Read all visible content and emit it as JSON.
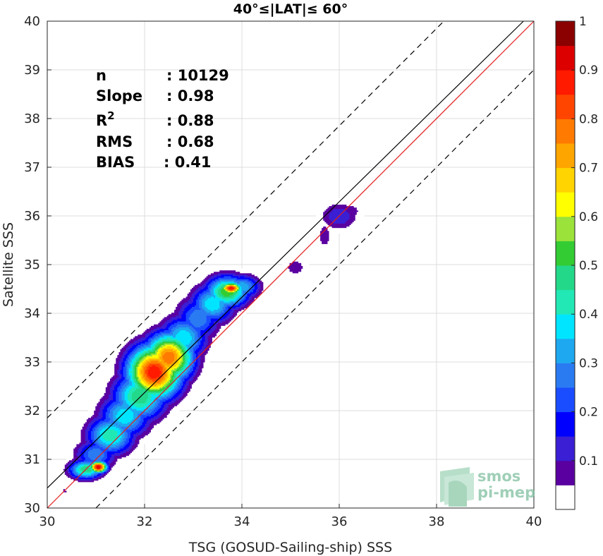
{
  "chart_data": {
    "type": "contour",
    "title": "40°≤|LAT|≤ 60°",
    "xlabel": "TSG (GOSUD-Sailing-ship) SSS",
    "ylabel": "Satellite SSS",
    "xlim": [
      30,
      40
    ],
    "ylim": [
      30,
      40
    ],
    "xticks": [
      30,
      32,
      34,
      36,
      38,
      40
    ],
    "yticks": [
      30,
      31,
      32,
      33,
      34,
      35,
      36,
      37,
      38,
      39,
      40
    ],
    "grid": true,
    "stats": [
      {
        "label": "n",
        "value": ": 10129"
      },
      {
        "label": "Slope",
        "value": ": 0.98"
      },
      {
        "label": "R",
        "sup": "2",
        "value": ": 0.88"
      },
      {
        "label": "RMS",
        "value": ": 0.68"
      },
      {
        "label": "BIAS",
        "value": ": 0.41"
      }
    ],
    "reference_lines": {
      "identity": {
        "slope": 1,
        "intercept": 0,
        "color": "#e41a1c"
      },
      "fit": {
        "slope": 0.98,
        "intercept": 1.01,
        "color": "#000000"
      },
      "upper_dashed": {
        "slope": 1,
        "intercept": 1.85,
        "color": "#000000"
      },
      "lower_dashed": {
        "slope": 1,
        "intercept": -1.0,
        "color": "#000000"
      }
    },
    "colorbar": {
      "ticks": [
        0.1,
        0.2,
        0.3,
        0.4,
        0.5,
        0.6,
        0.7,
        0.8,
        0.9,
        1
      ],
      "tick_labels": [
        "0.1",
        "0.2",
        "0.3",
        "0.4",
        "0.5",
        "0.6",
        "0.7",
        "0.8",
        "0.9",
        "1"
      ],
      "levels": [
        0.05,
        0.1,
        0.15,
        0.2,
        0.25,
        0.3,
        0.35,
        0.4,
        0.45,
        0.5,
        0.55,
        0.6,
        0.65,
        0.7,
        0.75,
        0.8,
        0.85,
        0.9,
        0.95,
        1.0
      ],
      "colors": [
        "#ffffff",
        "#5a00a0",
        "#3a1fd4",
        "#0000ff",
        "#1a4dff",
        "#2a7bf2",
        "#1ea8f0",
        "#00e5ff",
        "#21e8b5",
        "#24d88a",
        "#33cc33",
        "#9be23a",
        "#ffff00",
        "#ffd400",
        "#ffa500",
        "#ff7a00",
        "#ff4500",
        "#ff1a00",
        "#dd0000",
        "#8b0000"
      ]
    },
    "blobs": [
      {
        "name": "main-ridge",
        "center_x": [
          30.8,
          31.0,
          31.3,
          31.6,
          31.9,
          32.2,
          32.5,
          32.8,
          33.1,
          33.4,
          33.7,
          34.0
        ],
        "center_y": [
          30.8,
          31.1,
          31.5,
          31.9,
          32.3,
          32.8,
          33.1,
          33.5,
          33.9,
          34.2,
          34.45,
          34.55
        ],
        "half_width_x": [
          0.35,
          0.42,
          0.48,
          0.52,
          0.55,
          0.55,
          0.5,
          0.48,
          0.45,
          0.45,
          0.45,
          0.38
        ],
        "half_width_y": [
          0.2,
          0.32,
          0.4,
          0.45,
          0.5,
          0.55,
          0.5,
          0.45,
          0.45,
          0.4,
          0.33,
          0.25
        ],
        "peak": [
          0.55,
          0.35,
          0.5,
          0.45,
          0.55,
          0.95,
          0.85,
          0.45,
          0.35,
          0.45,
          0.6,
          0.4
        ]
      },
      {
        "name": "hotspot-low",
        "center_x": [
          31.05
        ],
        "center_y": [
          30.85
        ],
        "half_width_x": [
          0.18
        ],
        "half_width_y": [
          0.12
        ],
        "peak": [
          1.0
        ]
      },
      {
        "name": "hotspot-high",
        "center_x": [
          33.78
        ],
        "center_y": [
          34.52
        ],
        "half_width_x": [
          0.22
        ],
        "half_width_y": [
          0.12
        ],
        "peak": [
          0.95
        ]
      },
      {
        "name": "small-dot",
        "center_x": [
          30.35
        ],
        "center_y": [
          30.35
        ],
        "half_width_x": [
          0.04
        ],
        "half_width_y": [
          0.04
        ],
        "peak": [
          0.2
        ]
      },
      {
        "name": "mid-island",
        "center_x": [
          35.1
        ],
        "center_y": [
          34.95
        ],
        "half_width_x": [
          0.28
        ],
        "half_width_y": [
          0.22
        ],
        "peak": [
          0.13
        ]
      },
      {
        "name": "upper-island",
        "center_x": [
          35.7,
          36.0,
          36.25
        ],
        "center_y": [
          35.6,
          36.0,
          36.1
        ],
        "half_width_x": [
          0.18,
          0.4,
          0.3
        ],
        "half_width_y": [
          0.35,
          0.3,
          0.25
        ],
        "peak": [
          0.13,
          0.2,
          0.12
        ]
      }
    ]
  },
  "watermark": {
    "line1": "smos",
    "line2": "pi-mep"
  }
}
